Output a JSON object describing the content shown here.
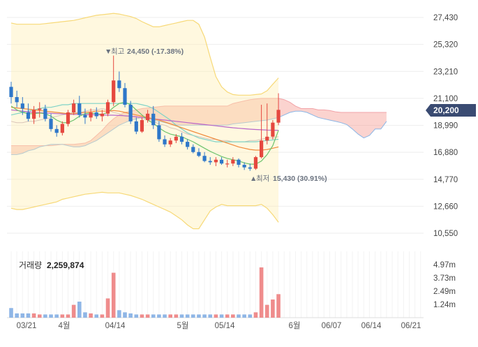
{
  "chart_data": {
    "type": "candlestick",
    "price_ticks": [
      "27,430",
      "25,320",
      "23,210",
      "21,100",
      "18,990",
      "16,880",
      "14,770",
      "12,660",
      "10,550"
    ],
    "ylim": [
      10550,
      27430
    ],
    "x_labels": [
      "03/21",
      "4월",
      "04/14",
      "5월",
      "05/14",
      "6월",
      "06/07",
      "06/14",
      "06/21"
    ],
    "current_price": 20200,
    "current_price_label": "20,200",
    "high_note": {
      "prefix": "▼",
      "label": "최고",
      "value": "24,450 (-17.38%)"
    },
    "low_note": {
      "prefix": "▲",
      "label": "최저",
      "value": "15,430 (30.91%)"
    },
    "volume_label": "거래량",
    "volume_value": "2,259,874",
    "volume_ticks": [
      "4.97m",
      "3.73m",
      "2.49m",
      "1.24m"
    ],
    "volume_ylim": [
      0,
      6.2
    ],
    "candles": [
      [
        22000,
        22400,
        20700,
        21200
      ],
      [
        21200,
        21700,
        20400,
        20800
      ],
      [
        20700,
        21200,
        19800,
        20300
      ],
      [
        20000,
        20700,
        19300,
        19500
      ],
      [
        19500,
        20500,
        19100,
        20200
      ],
      [
        20200,
        20800,
        19600,
        20300
      ],
      [
        20300,
        20600,
        19300,
        19500
      ],
      [
        19500,
        19900,
        18500,
        18700
      ],
      [
        18700,
        19000,
        18100,
        18400
      ],
      [
        18400,
        19300,
        18200,
        19100
      ],
      [
        19100,
        20200,
        18900,
        20000
      ],
      [
        20000,
        21000,
        19800,
        20700
      ],
      [
        20700,
        21300,
        19600,
        19800
      ],
      [
        19800,
        20300,
        19100,
        19600
      ],
      [
        19600,
        20300,
        19300,
        20000
      ],
      [
        20000,
        20400,
        19500,
        19700
      ],
      [
        19700,
        20200,
        19300,
        19900
      ],
      [
        19900,
        21000,
        19700,
        20800
      ],
      [
        20800,
        24450,
        20500,
        22500
      ],
      [
        22500,
        23200,
        21600,
        21900
      ],
      [
        21900,
        22300,
        20400,
        20600
      ],
      [
        20600,
        20900,
        19100,
        19300
      ],
      [
        19300,
        19600,
        18300,
        18500
      ],
      [
        18500,
        19600,
        18400,
        19400
      ],
      [
        19400,
        20200,
        19200,
        19900
      ],
      [
        19900,
        20500,
        18700,
        19000
      ],
      [
        19000,
        19300,
        17700,
        17900
      ],
      [
        17900,
        18200,
        17300,
        17500
      ],
      [
        17500,
        18000,
        17300,
        17800
      ],
      [
        17800,
        18300,
        17600,
        18100
      ],
      [
        18100,
        18400,
        17500,
        17700
      ],
      [
        17700,
        17900,
        17100,
        17300
      ],
      [
        17300,
        17500,
        16800,
        16900
      ],
      [
        16900,
        17200,
        16500,
        16600
      ],
      [
        16600,
        16900,
        16100,
        16200
      ],
      [
        16200,
        16500,
        15900,
        16100
      ],
      [
        16100,
        16500,
        15800,
        16300
      ],
      [
        16300,
        16500,
        15900,
        16000
      ],
      [
        16000,
        16300,
        15700,
        16000
      ],
      [
        16000,
        16500,
        15800,
        16300
      ],
      [
        16300,
        16400,
        15700,
        15900
      ],
      [
        15900,
        16100,
        15500,
        15700
      ],
      [
        15700,
        16000,
        15430,
        15600
      ],
      [
        15600,
        16600,
        15500,
        16500
      ],
      [
        16500,
        20600,
        16400,
        17800
      ],
      [
        17800,
        20700,
        17500,
        18100
      ],
      [
        18100,
        19400,
        17900,
        19200
      ],
      [
        19200,
        21500,
        19000,
        20200
      ]
    ],
    "volumes": [
      0.9,
      0.4,
      0.4,
      0.4,
      0.4,
      0.3,
      0.3,
      0.3,
      0.3,
      0.3,
      0.3,
      1.2,
      1.5,
      0.5,
      0.4,
      0.3,
      0.3,
      1.8,
      4.2,
      0.7,
      0.5,
      0.4,
      0.3,
      0.3,
      0.3,
      0.3,
      0.3,
      0.3,
      0.3,
      0.3,
      0.3,
      0.3,
      0.3,
      0.3,
      0.3,
      0.3,
      0.3,
      0.3,
      0.3,
      0.3,
      0.3,
      0.3,
      0.3,
      0.5,
      4.7,
      1.2,
      1.7,
      2.2
    ],
    "ma_green": [
      20500,
      20200,
      20000,
      19900,
      19900,
      19950,
      19900,
      19700,
      19400,
      19200,
      19200,
      19400,
      19700,
      19900,
      19950,
      19900,
      19850,
      20000,
      20400,
      20700,
      20800,
      20600,
      20200,
      19800,
      19400,
      19150,
      18800,
      18500,
      18300,
      18200,
      18100,
      17900,
      17700,
      17450,
      17200,
      16950,
      16750,
      16550,
      16400,
      16300,
      16200,
      16050,
      15950,
      15950,
      16200,
      16700,
      17400,
      18600
    ],
    "ma_orange": [
      20400,
      20350,
      20300,
      20250,
      20200,
      20150,
      20100,
      20050,
      20000,
      19950,
      19900,
      19900,
      19950,
      20000,
      20050,
      20100,
      20100,
      20100,
      20150,
      20100,
      20000,
      19900,
      19800,
      19700,
      19600,
      19500,
      19400,
      19250,
      19100,
      18950,
      18800,
      18650,
      18500,
      18350,
      18200,
      18050,
      17900,
      17750,
      17600,
      17450,
      17300,
      17200,
      17100,
      17050,
      17050,
      17100,
      17200,
      17300
    ],
    "ma_purple": [
      20200,
      20150,
      20100,
      20050,
      20000,
      19980,
      19950,
      19930,
      19900,
      19880,
      19860,
      19850,
      19840,
      19830,
      19820,
      19810,
      19800,
      19790,
      19780,
      19760,
      19740,
      19700,
      19650,
      19600,
      19550,
      19500,
      19450,
      19400,
      19350,
      19300,
      19250,
      19200,
      19150,
      19100,
      19050,
      19000,
      18950,
      18900,
      18850,
      18800,
      18760,
      18720,
      18690,
      18660,
      18640,
      18620,
      18610,
      18600
    ],
    "bb_upper": [
      27000,
      26900,
      26900,
      26900,
      26900,
      26900,
      26950,
      27000,
      27050,
      27100,
      27150,
      27200,
      27300,
      27400,
      27500,
      27600,
      27650,
      27700,
      27750,
      27700,
      27600,
      27500,
      27350,
      27100,
      26900,
      26700,
      26700,
      26800,
      26900,
      27000,
      27100,
      27200,
      27200,
      26900,
      25900,
      24300,
      22800,
      22000,
      21600,
      21400,
      21350,
      21350,
      21350,
      21400,
      21450,
      21700,
      22200,
      22700
    ],
    "bb_lower": [
      12500,
      12400,
      12400,
      12500,
      12600,
      12700,
      12800,
      12900,
      13000,
      13200,
      13300,
      13400,
      13500,
      13600,
      13650,
      13700,
      13750,
      13700,
      13700,
      13700,
      13600,
      13500,
      13350,
      13200,
      13000,
      12800,
      12600,
      12400,
      12200,
      11900,
      11600,
      11200,
      10900,
      10900,
      11600,
      12300,
      12600,
      12800,
      12700,
      12700,
      12700,
      12700,
      12700,
      12700,
      12800,
      12500,
      12000,
      11400
    ],
    "span_a": [
      17400,
      17400,
      17400,
      17400,
      17400,
      17400,
      17400,
      17400,
      17450,
      17500,
      17500,
      17500,
      17550,
      17600,
      17800,
      18200,
      18600,
      19100,
      19500,
      19800,
      20000,
      20100,
      20200,
      20300,
      20350,
      20400,
      20450,
      20500,
      20500,
      20500,
      20500,
      20500,
      20500,
      20500,
      20500,
      20500,
      20500,
      20500,
      20500,
      20700,
      20800,
      20900,
      21000,
      21050,
      21100,
      21100,
      21100,
      21100,
      21000,
      20800,
      20500,
      20300,
      20300,
      20300,
      20200,
      20200,
      20150,
      20050,
      20000,
      20000,
      20000,
      20000,
      20000,
      20000,
      20000,
      20000,
      20000
    ],
    "span_b": [
      16700,
      16700,
      16800,
      17000,
      17100,
      17300,
      17400,
      17500,
      17500,
      17500,
      17400,
      17300,
      17300,
      17400,
      17600,
      17800,
      18100,
      18400,
      18700,
      19000,
      19200,
      19400,
      19500,
      19600,
      19500,
      19400,
      19300,
      19200,
      19100,
      19000,
      19000,
      19000,
      19000,
      19000,
      19000,
      19000,
      19000,
      19000,
      19000,
      19100,
      19150,
      19200,
      19250,
      19300,
      19350,
      19400,
      19500,
      19600,
      19800,
      20000,
      20100,
      20100,
      20000,
      19800,
      19600,
      19500,
      19400,
      19300,
      19200,
      19050,
      18700,
      18300,
      18000,
      18200,
      18700,
      18700,
      19300
    ],
    "thin_line": [
      19300,
      19200,
      19200,
      19300,
      19300,
      19400,
      19500,
      19600,
      19700,
      19800,
      19900,
      20000,
      20000,
      20100,
      20200,
      20200,
      20300,
      20200,
      20000,
      19900,
      19700,
      19700,
      19700,
      19500,
      19400,
      19300,
      19100,
      19000,
      18800,
      18700,
      18500,
      18300,
      18200,
      18100,
      18000,
      17900,
      17900,
      17800,
      17800,
      17700,
      17700,
      17700,
      17800,
      17800,
      17900,
      18000,
      18000,
      18100
    ],
    "teal_line": [
      19800,
      19900,
      20000,
      20100,
      20200,
      20300,
      20400,
      20400,
      20500,
      20600,
      20600,
      20700,
      20700,
      20700,
      20700,
      20700,
      20700,
      20700,
      20700,
      20700,
      20700,
      20700,
      20700,
      20600,
      20500,
      20300,
      20000,
      19700,
      19400,
      19000,
      18700,
      18400,
      18200,
      18000,
      17900,
      17800,
      17700,
      17700,
      17700,
      17700,
      17700,
      17700,
      17700,
      17700,
      17750,
      17800,
      17850,
      17900
    ]
  }
}
